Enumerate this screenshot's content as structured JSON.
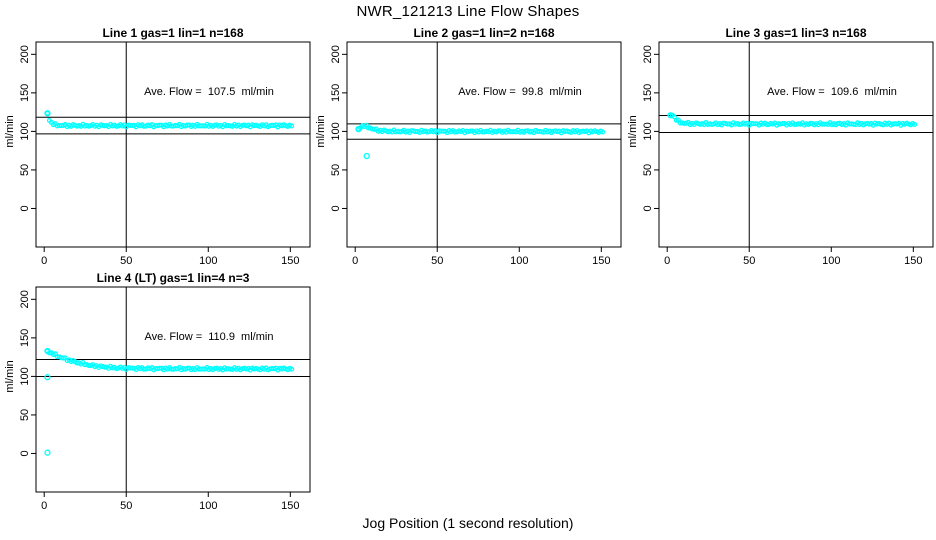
{
  "figure_title": "NWR_121213  Line Flow Shapes",
  "x_axis_label": "Jog Position (1 second resolution)",
  "colors": {
    "points": "#00ffff",
    "axis": "#000000",
    "background": "#ffffff"
  },
  "axes": {
    "x_ticks": [
      0,
      50,
      100,
      150
    ],
    "y_ticks": [
      0,
      50,
      100,
      150,
      200
    ],
    "y_label": "ml/min",
    "xlim": [
      -5,
      162
    ],
    "ylim": [
      -50,
      216
    ],
    "grid": false
  },
  "chart_data": [
    {
      "type": "scatter",
      "title": "Line 1 gas=1 lin=1 n=168",
      "annotation": "Ave. Flow =  107.5  ml/min",
      "ave_flow_ml_min": 107.5,
      "n": 168,
      "vline_x": 50,
      "hlines": [
        118.3,
        96.8
      ],
      "flat_value": 107.5,
      "trend_points": [
        [
          2,
          123.5
        ],
        [
          3,
          116
        ],
        [
          4,
          112
        ],
        [
          5,
          110
        ],
        [
          6,
          108.8
        ],
        [
          8,
          108
        ],
        [
          12,
          107.6
        ],
        [
          20,
          107.5
        ],
        [
          151,
          107.5
        ]
      ],
      "outlier_points": []
    },
    {
      "type": "scatter",
      "title": "Line 2 gas=1 lin=2 n=168",
      "annotation": "Ave. Flow =  99.8  ml/min",
      "ave_flow_ml_min": 99.8,
      "n": 168,
      "vline_x": 50,
      "hlines": [
        109.8,
        89.8
      ],
      "flat_value": 100,
      "trend_points": [
        [
          2,
          103
        ],
        [
          3,
          105.5
        ],
        [
          4,
          106.8
        ],
        [
          6,
          107
        ],
        [
          8,
          105.5
        ],
        [
          10,
          103.8
        ],
        [
          12,
          102.3
        ],
        [
          15,
          101
        ],
        [
          20,
          100.2
        ],
        [
          30,
          100
        ],
        [
          151,
          99.8
        ]
      ],
      "outlier_points": [
        [
          7,
          68
        ]
      ]
    },
    {
      "type": "scatter",
      "title": "Line 3 gas=1 lin=3 n=168",
      "annotation": "Ave. Flow =  109.6  ml/min",
      "ave_flow_ml_min": 109.6,
      "n": 168,
      "vline_x": 50,
      "hlines": [
        120.6,
        98.6
      ],
      "flat_value": 109.6,
      "trend_points": [
        [
          2,
          121
        ],
        [
          3,
          122.5
        ],
        [
          4,
          119.5
        ],
        [
          5,
          116.5
        ],
        [
          6,
          114
        ],
        [
          8,
          111.8
        ],
        [
          10,
          110.7
        ],
        [
          15,
          110
        ],
        [
          25,
          109.7
        ],
        [
          151,
          109.6
        ]
      ],
      "outlier_points": []
    },
    {
      "type": "scatter",
      "title": "Line 4 (LT) gas=1 lin=4 n=3",
      "annotation": "Ave. Flow =  110.9  ml/min",
      "ave_flow_ml_min": 110.9,
      "n": 3,
      "vline_x": 50,
      "hlines": [
        122.0,
        99.8
      ],
      "flat_value": 110,
      "trend_points": [
        [
          2,
          133
        ],
        [
          4,
          130.5
        ],
        [
          6,
          128.5
        ],
        [
          8,
          126.5
        ],
        [
          10,
          124.8
        ],
        [
          14,
          121.8
        ],
        [
          18,
          119.2
        ],
        [
          22,
          117
        ],
        [
          26,
          115.2
        ],
        [
          30,
          113.8
        ],
        [
          35,
          112.5
        ],
        [
          40,
          111.6
        ],
        [
          45,
          111
        ],
        [
          55,
          110.4
        ],
        [
          70,
          110
        ],
        [
          100,
          109.8
        ],
        [
          151,
          109.8
        ]
      ],
      "outlier_points": [
        [
          2,
          99
        ],
        [
          2,
          1
        ]
      ]
    }
  ]
}
